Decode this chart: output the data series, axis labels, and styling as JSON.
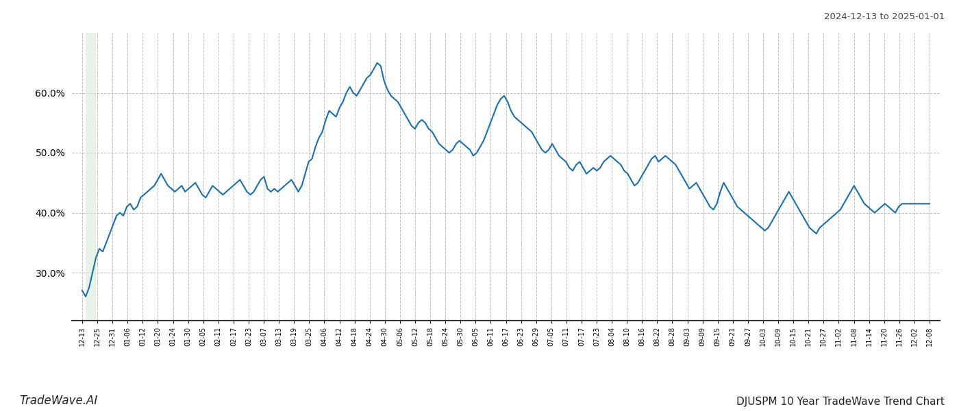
{
  "title_top_right": "2024-12-13 to 2025-01-01",
  "title_bottom_right": "DJUSPM 10 Year TradeWave Trend Chart",
  "title_bottom_left": "TradeWave.AI",
  "line_color": "#1a6faf",
  "line_width": 1.5,
  "background_color": "#ffffff",
  "grid_color": "#c0c0c0",
  "grid_style": "--",
  "shade_color": "#d4ead4",
  "shade_alpha": 0.55,
  "ylim_low": 22,
  "ylim_high": 70,
  "yticks": [
    30.0,
    40.0,
    50.0,
    60.0
  ],
  "ytick_labels": [
    "30.0%",
    "40.0%",
    "50.0%",
    "60.0%"
  ],
  "xtick_labels": [
    "12-13",
    "12-25",
    "12-31",
    "01-06",
    "01-12",
    "01-20",
    "01-24",
    "01-30",
    "02-05",
    "02-11",
    "02-17",
    "02-23",
    "03-07",
    "03-13",
    "03-19",
    "03-25",
    "04-06",
    "04-12",
    "04-18",
    "04-24",
    "04-30",
    "05-06",
    "05-12",
    "05-18",
    "05-24",
    "05-30",
    "06-05",
    "06-11",
    "06-17",
    "06-23",
    "06-29",
    "07-05",
    "07-11",
    "07-17",
    "07-23",
    "08-04",
    "08-10",
    "08-16",
    "08-22",
    "08-28",
    "09-03",
    "09-09",
    "09-15",
    "09-21",
    "09-27",
    "10-03",
    "10-09",
    "10-15",
    "10-21",
    "10-27",
    "11-02",
    "11-08",
    "11-14",
    "11-20",
    "11-26",
    "12-02",
    "12-08"
  ],
  "shade_xstart": 1,
  "shade_xend": 4,
  "y_values": [
    27.0,
    26.0,
    27.5,
    30.0,
    32.5,
    34.0,
    33.5,
    35.0,
    36.5,
    38.0,
    39.5,
    40.0,
    39.5,
    41.0,
    41.5,
    40.5,
    41.0,
    42.5,
    43.0,
    43.5,
    44.0,
    44.5,
    45.5,
    46.5,
    45.5,
    44.5,
    44.0,
    43.5,
    44.0,
    44.5,
    43.5,
    44.0,
    44.5,
    45.0,
    44.0,
    43.0,
    42.5,
    43.5,
    44.5,
    44.0,
    43.5,
    43.0,
    43.5,
    44.0,
    44.5,
    45.0,
    45.5,
    44.5,
    43.5,
    43.0,
    43.5,
    44.5,
    45.5,
    46.0,
    44.0,
    43.5,
    44.0,
    43.5,
    44.0,
    44.5,
    45.0,
    45.5,
    44.5,
    43.5,
    44.5,
    46.5,
    48.5,
    49.0,
    51.0,
    52.5,
    53.5,
    55.5,
    57.0,
    56.5,
    56.0,
    57.5,
    58.5,
    60.0,
    61.0,
    60.0,
    59.5,
    60.5,
    61.5,
    62.5,
    63.0,
    64.0,
    65.0,
    64.5,
    62.0,
    60.5,
    59.5,
    59.0,
    58.5,
    57.5,
    56.5,
    55.5,
    54.5,
    54.0,
    55.0,
    55.5,
    55.0,
    54.0,
    53.5,
    52.5,
    51.5,
    51.0,
    50.5,
    50.0,
    50.5,
    51.5,
    52.0,
    51.5,
    51.0,
    50.5,
    49.5,
    50.0,
    51.0,
    52.0,
    53.5,
    55.0,
    56.5,
    58.0,
    59.0,
    59.5,
    58.5,
    57.0,
    56.0,
    55.5,
    55.0,
    54.5,
    54.0,
    53.5,
    52.5,
    51.5,
    50.5,
    50.0,
    50.5,
    51.5,
    50.5,
    49.5,
    49.0,
    48.5,
    47.5,
    47.0,
    48.0,
    48.5,
    47.5,
    46.5,
    47.0,
    47.5,
    47.0,
    47.5,
    48.5,
    49.0,
    49.5,
    49.0,
    48.5,
    48.0,
    47.0,
    46.5,
    45.5,
    44.5,
    45.0,
    46.0,
    47.0,
    48.0,
    49.0,
    49.5,
    48.5,
    49.0,
    49.5,
    49.0,
    48.5,
    48.0,
    47.0,
    46.0,
    45.0,
    44.0,
    44.5,
    45.0,
    44.0,
    43.0,
    42.0,
    41.0,
    40.5,
    41.5,
    43.5,
    45.0,
    44.0,
    43.0,
    42.0,
    41.0,
    40.5,
    40.0,
    39.5,
    39.0,
    38.5,
    38.0,
    37.5,
    37.0,
    37.5,
    38.5,
    39.5,
    40.5,
    41.5,
    42.5,
    43.5,
    42.5,
    41.5,
    40.5,
    39.5,
    38.5,
    37.5,
    37.0,
    36.5,
    37.5,
    38.0,
    38.5,
    39.0,
    39.5,
    40.0,
    40.5,
    41.5,
    42.5,
    43.5,
    44.5,
    43.5,
    42.5,
    41.5,
    41.0,
    40.5,
    40.0,
    40.5,
    41.0,
    41.5,
    41.0,
    40.5,
    40.0,
    41.0,
    41.5,
    41.5,
    41.5,
    41.5,
    41.5,
    41.5,
    41.5,
    41.5,
    41.5
  ]
}
